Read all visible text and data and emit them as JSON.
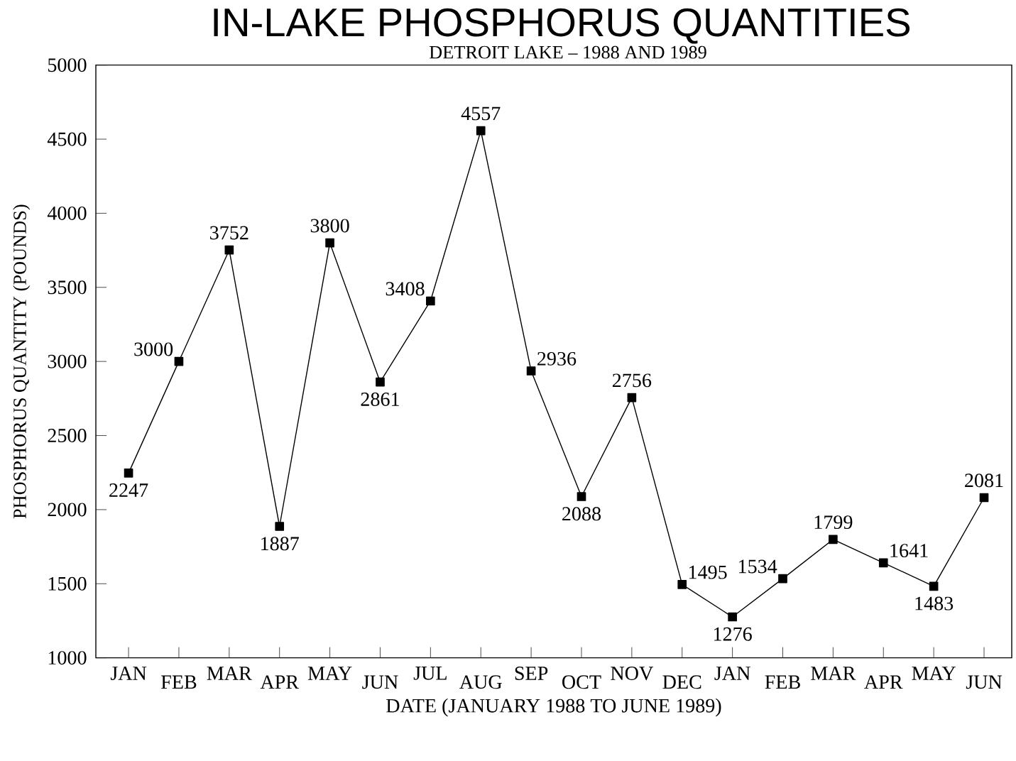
{
  "chart_data": {
    "type": "line",
    "title": "IN-LAKE PHOSPHORUS QUANTITIES",
    "subtitle": "DETROIT LAKE – 1988 AND 1989",
    "xlabel": "DATE (JANUARY 1988 TO JUNE 1989)",
    "ylabel": "PHOSPHORUS QUANTITY (POUNDS)",
    "categories": [
      "JAN",
      "FEB",
      "MAR",
      "APR",
      "MAY",
      "JUN",
      "JUL",
      "AUG",
      "SEP",
      "OCT",
      "NOV",
      "DEC",
      "JAN",
      "FEB",
      "MAR",
      "APR",
      "MAY",
      "JUN"
    ],
    "values": [
      2247,
      3000,
      3752,
      1887,
      3800,
      2861,
      3408,
      4557,
      2936,
      2088,
      2756,
      1495,
      1276,
      1534,
      1799,
      1641,
      1483,
      2081
    ],
    "color": "#000000",
    "marker": "square",
    "line_style": "solid",
    "data_labels": true,
    "grid": false,
    "ylim": [
      1000,
      5000
    ],
    "yticks": [
      1000,
      1500,
      2000,
      2500,
      3000,
      3500,
      4000,
      4500,
      5000
    ]
  }
}
